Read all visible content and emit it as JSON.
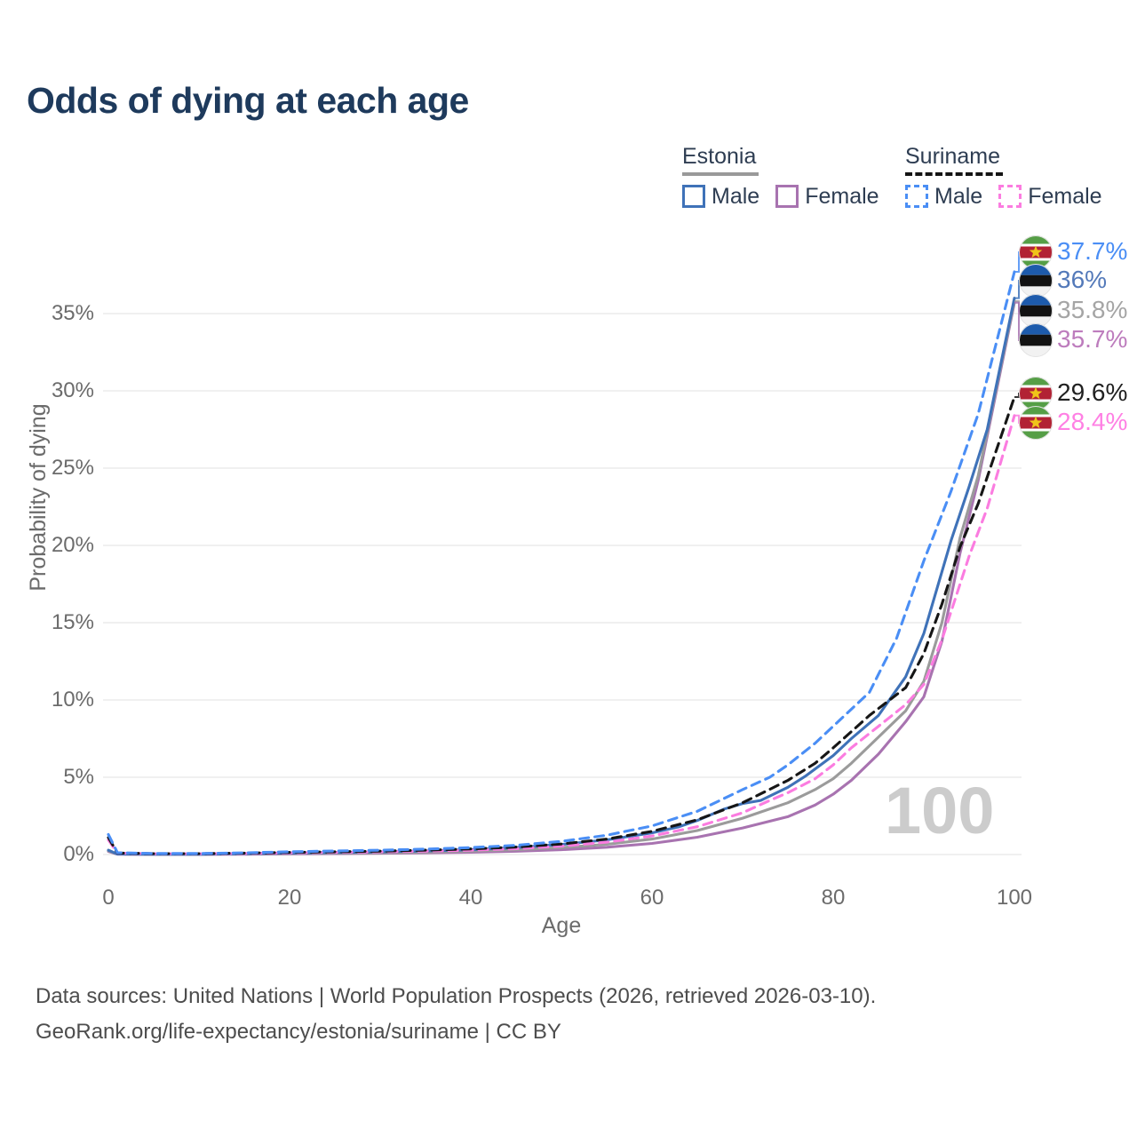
{
  "title": "Odds of dying at each age",
  "watermark": "100",
  "legend": {
    "groups": [
      {
        "country": "Estonia",
        "underline_style": "solid",
        "underline_color": "#999999",
        "items": [
          {
            "label": "Male",
            "color": "#3f72b8",
            "dashed": false
          },
          {
            "label": "Female",
            "color": "#a873b0",
            "dashed": false
          }
        ]
      },
      {
        "country": "Suriname",
        "underline_style": "dashed",
        "underline_color": "#141414",
        "items": [
          {
            "label": "Male",
            "color": "#4a8ef5",
            "dashed": true
          },
          {
            "label": "Female",
            "color": "#fb7ce0",
            "dashed": true
          }
        ]
      }
    ]
  },
  "footer": {
    "line1": "Data sources: United Nations | World Population Prospects (2026, retrieved 2026-03-10).",
    "line2": "GeoRank.org/life-expectancy/estonia/suriname | CC BY"
  },
  "chart_data": {
    "type": "line",
    "title": "Odds of dying at each age",
    "xlabel": "Age",
    "ylabel": "Probability of dying",
    "xlim": [
      0,
      100
    ],
    "ylim": [
      0,
      38
    ],
    "x_ticks": [
      0,
      20,
      40,
      60,
      80,
      100
    ],
    "y_tick_values": [
      0,
      5,
      10,
      15,
      20,
      25,
      30,
      35
    ],
    "y_tick_labels": [
      "0%",
      "5%",
      "10%",
      "15%",
      "20%",
      "25%",
      "30%",
      "35%"
    ],
    "grid": "horizontal",
    "legend_position": "top-right",
    "frame_label": "100",
    "series": [
      {
        "id": "estonia-female",
        "name": "Estonia Female",
        "country": "Estonia",
        "sex": "Female",
        "line_style": "solid",
        "color": "#a873b0",
        "label_color": "#bd7cbd",
        "end_value": 35.7,
        "end_label": "35.7%",
        "flag": "estonia",
        "points": [
          [
            0,
            0.2
          ],
          [
            1,
            0.02
          ],
          [
            5,
            0.01
          ],
          [
            10,
            0.01
          ],
          [
            15,
            0.02
          ],
          [
            20,
            0.04
          ],
          [
            25,
            0.06
          ],
          [
            30,
            0.08
          ],
          [
            35,
            0.11
          ],
          [
            40,
            0.15
          ],
          [
            45,
            0.21
          ],
          [
            50,
            0.31
          ],
          [
            55,
            0.47
          ],
          [
            60,
            0.72
          ],
          [
            65,
            1.12
          ],
          [
            70,
            1.72
          ],
          [
            75,
            2.45
          ],
          [
            78,
            3.2
          ],
          [
            80,
            3.9
          ],
          [
            82,
            4.8
          ],
          [
            85,
            6.5
          ],
          [
            88,
            8.6
          ],
          [
            90,
            10.2
          ],
          [
            92,
            13.8
          ],
          [
            94,
            19.5
          ],
          [
            96,
            24.2
          ],
          [
            100,
            35.7
          ]
        ]
      },
      {
        "id": "estonia-total",
        "name": "Estonia",
        "country": "Estonia",
        "sex": "Both",
        "line_style": "solid",
        "color": "#9b9b9b",
        "label_color": "#a5a5a5",
        "end_value": 35.8,
        "end_label": "35.8%",
        "flag": "estonia",
        "points": [
          [
            0,
            0.24
          ],
          [
            1,
            0.03
          ],
          [
            5,
            0.02
          ],
          [
            10,
            0.02
          ],
          [
            15,
            0.04
          ],
          [
            20,
            0.07
          ],
          [
            25,
            0.09
          ],
          [
            30,
            0.12
          ],
          [
            35,
            0.16
          ],
          [
            40,
            0.22
          ],
          [
            45,
            0.31
          ],
          [
            50,
            0.45
          ],
          [
            55,
            0.66
          ],
          [
            60,
            1.0
          ],
          [
            65,
            1.55
          ],
          [
            70,
            2.35
          ],
          [
            75,
            3.35
          ],
          [
            78,
            4.2
          ],
          [
            80,
            4.9
          ],
          [
            82,
            5.9
          ],
          [
            85,
            7.6
          ],
          [
            88,
            9.3
          ],
          [
            90,
            11.2
          ],
          [
            92,
            15.0
          ],
          [
            94,
            20.5
          ],
          [
            96,
            24.5
          ],
          [
            100,
            35.8
          ]
        ]
      },
      {
        "id": "estonia-male",
        "name": "Estonia Male",
        "country": "Estonia",
        "sex": "Male",
        "line_style": "solid",
        "color": "#3f72b8",
        "label_color": "#5379b9",
        "end_value": 36,
        "end_label": "36%",
        "flag": "estonia",
        "points": [
          [
            0,
            0.28
          ],
          [
            1,
            0.03
          ],
          [
            5,
            0.02
          ],
          [
            10,
            0.02
          ],
          [
            15,
            0.05
          ],
          [
            20,
            0.1
          ],
          [
            25,
            0.13
          ],
          [
            30,
            0.17
          ],
          [
            35,
            0.23
          ],
          [
            40,
            0.31
          ],
          [
            45,
            0.45
          ],
          [
            50,
            0.65
          ],
          [
            55,
            0.95
          ],
          [
            60,
            1.4
          ],
          [
            63,
            1.8
          ],
          [
            65,
            2.2
          ],
          [
            68,
            2.95
          ],
          [
            70,
            3.3
          ],
          [
            72,
            3.5
          ],
          [
            75,
            4.35
          ],
          [
            77,
            5.1
          ],
          [
            80,
            6.4
          ],
          [
            82,
            7.5
          ],
          [
            85,
            9.0
          ],
          [
            88,
            11.5
          ],
          [
            90,
            14.3
          ],
          [
            93,
            20.3
          ],
          [
            95,
            23.8
          ],
          [
            97,
            27.5
          ],
          [
            100,
            36.0
          ]
        ]
      },
      {
        "id": "suriname-female",
        "name": "Suriname Female",
        "country": "Suriname",
        "sex": "Female",
        "line_style": "dashed",
        "color": "#fb7ce0",
        "label_color": "#ff80e4",
        "end_value": 28.4,
        "end_label": "28.4%",
        "flag": "suriname",
        "points": [
          [
            0,
            0.95
          ],
          [
            1,
            0.09
          ],
          [
            5,
            0.05
          ],
          [
            10,
            0.05
          ],
          [
            15,
            0.07
          ],
          [
            20,
            0.11
          ],
          [
            25,
            0.14
          ],
          [
            30,
            0.17
          ],
          [
            35,
            0.22
          ],
          [
            40,
            0.28
          ],
          [
            45,
            0.38
          ],
          [
            50,
            0.54
          ],
          [
            55,
            0.8
          ],
          [
            60,
            1.2
          ],
          [
            65,
            1.8
          ],
          [
            70,
            2.7
          ],
          [
            73,
            3.5
          ],
          [
            75,
            4.0
          ],
          [
            78,
            4.9
          ],
          [
            80,
            5.8
          ],
          [
            82,
            6.9
          ],
          [
            85,
            8.3
          ],
          [
            88,
            9.7
          ],
          [
            90,
            11.0
          ],
          [
            92,
            13.9
          ],
          [
            95,
            19.3
          ],
          [
            97,
            22.4
          ],
          [
            100,
            28.4
          ]
        ]
      },
      {
        "id": "suriname-total",
        "name": "Suriname",
        "country": "Suriname",
        "sex": "Both",
        "line_style": "dashed",
        "color": "#161616",
        "label_color": "#212121",
        "end_value": 29.6,
        "end_label": "29.6%",
        "flag": "suriname",
        "points": [
          [
            0,
            1.1
          ],
          [
            1,
            0.1
          ],
          [
            5,
            0.06
          ],
          [
            10,
            0.06
          ],
          [
            15,
            0.09
          ],
          [
            20,
            0.14
          ],
          [
            25,
            0.18
          ],
          [
            30,
            0.22
          ],
          [
            35,
            0.28
          ],
          [
            40,
            0.36
          ],
          [
            45,
            0.48
          ],
          [
            50,
            0.68
          ],
          [
            55,
            1.0
          ],
          [
            60,
            1.5
          ],
          [
            65,
            2.25
          ],
          [
            70,
            3.35
          ],
          [
            75,
            4.8
          ],
          [
            78,
            5.9
          ],
          [
            80,
            6.9
          ],
          [
            84,
            9.0
          ],
          [
            88,
            10.8
          ],
          [
            90,
            13.0
          ],
          [
            92,
            16.2
          ],
          [
            94,
            19.9
          ],
          [
            96,
            22.7
          ],
          [
            100,
            29.6
          ]
        ]
      },
      {
        "id": "suriname-male",
        "name": "Suriname Male",
        "country": "Suriname",
        "sex": "Male",
        "line_style": "dashed",
        "color": "#4a8ef5",
        "label_color": "#4a8ef5",
        "end_value": 37.7,
        "end_label": "37.7%",
        "flag": "suriname",
        "points": [
          [
            0,
            1.3
          ],
          [
            1,
            0.12
          ],
          [
            5,
            0.07
          ],
          [
            10,
            0.07
          ],
          [
            15,
            0.11
          ],
          [
            20,
            0.18
          ],
          [
            25,
            0.23
          ],
          [
            30,
            0.28
          ],
          [
            35,
            0.35
          ],
          [
            40,
            0.45
          ],
          [
            45,
            0.6
          ],
          [
            50,
            0.85
          ],
          [
            55,
            1.25
          ],
          [
            60,
            1.85
          ],
          [
            65,
            2.8
          ],
          [
            70,
            4.2
          ],
          [
            73,
            5.0
          ],
          [
            75,
            5.8
          ],
          [
            78,
            7.2
          ],
          [
            80,
            8.3
          ],
          [
            84,
            10.5
          ],
          [
            87,
            14.0
          ],
          [
            90,
            19.0
          ],
          [
            93,
            23.5
          ],
          [
            96,
            28.5
          ],
          [
            100,
            37.7
          ]
        ]
      }
    ],
    "flag_colors": {
      "estonia": {
        "blue": "#1d5bac",
        "black": "#121212",
        "white": "#f2f2f2"
      },
      "suriname": {
        "green": "#559e46",
        "white": "#ffffff",
        "red": "#b22234",
        "star": "#f0c419"
      }
    }
  }
}
